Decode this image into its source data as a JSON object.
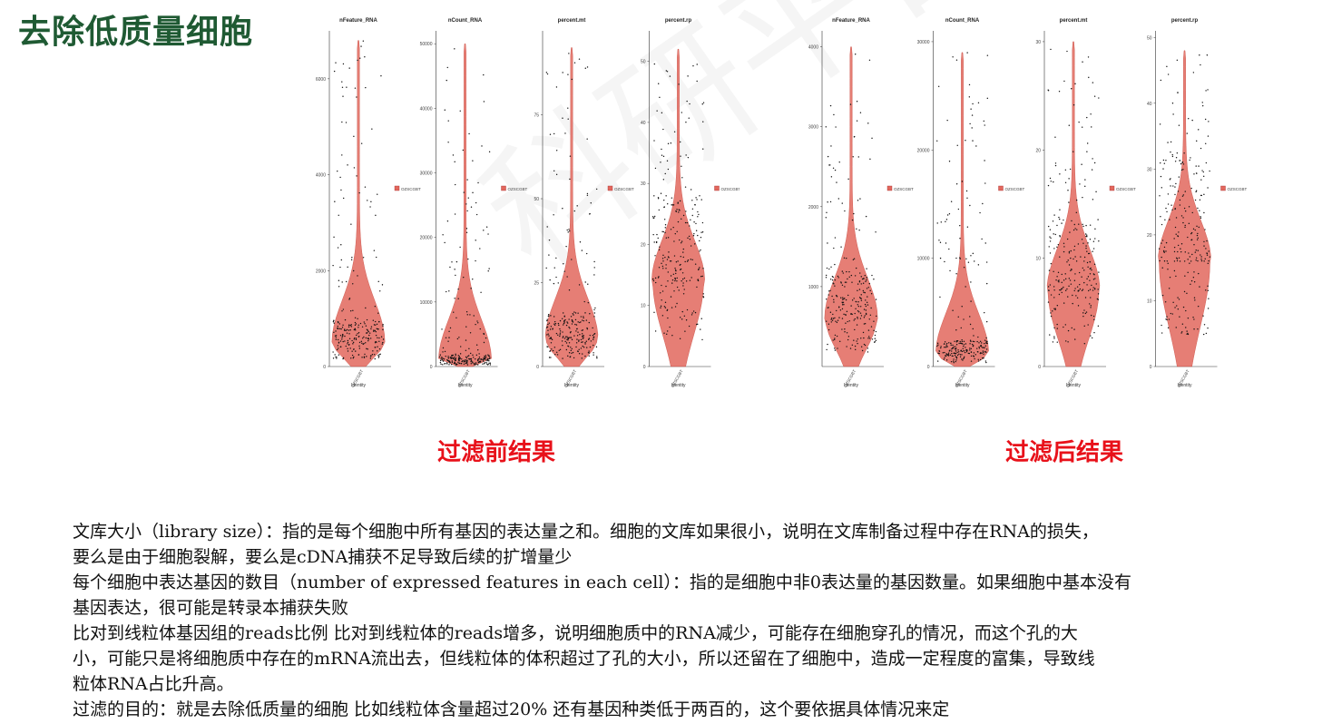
{
  "title": "去除低质量细胞",
  "captions": {
    "before": "过滤前结果",
    "after": "过滤后结果"
  },
  "paragraphs": [
    "文库大小（library size）：指的是每个细胞中所有基因的表达量之和。细胞的文库如果很小，说明在文库制备过程中存在RNA的损失，",
    "要么是由于细胞裂解，要么是cDNA捕获不足导致后续的扩增量少",
    "  每个细胞中表达基因的数目（number of expressed features in each cell）：指的是细胞中非0表达量的基因数量。如果细胞中基本没有",
    "基因表达，很可能是转录本捕获失败",
    "  比对到线粒体基因组的reads比例 比对到线粒体的reads增多，说明细胞质中的RNA减少，可能存在细胞穿孔的情况，而这个孔的大",
    "小，可能只是将细胞质中存在的mRNA流出去，但线粒体的体积超过了孔的大小，所以还留在了细胞中，造成一定程度的富集，导致线",
    "粒体RNA占比升高。",
    "过滤的目的：就是去除低质量的细胞 比如线粒体含量超过20% 还有基因种类低于两百的，这个要依据具体情况来定"
  ],
  "chart_data": [
    {
      "type": "violin",
      "panel": "before",
      "legend_label": "OZSCGBT",
      "xlabel": "Identity",
      "x_tick": "OZSCGBT",
      "subplots": [
        {
          "title": "nFeature_RNA",
          "ylim": [
            0,
            7000
          ],
          "yticks": [
            0,
            2000,
            4000,
            6000
          ],
          "median": 500,
          "max": 6800
        },
        {
          "title": "nCount_RNA",
          "ylim": [
            0,
            52000
          ],
          "yticks": [
            0,
            10000,
            20000,
            30000,
            40000,
            50000
          ],
          "median": 900,
          "max": 50000
        },
        {
          "title": "percent.mt",
          "ylim": [
            0,
            100
          ],
          "yticks": [
            0,
            25,
            50,
            75
          ],
          "median": 8,
          "max": 95
        },
        {
          "title": "percent.rp",
          "ylim": [
            0,
            55
          ],
          "yticks": [
            0,
            10,
            20,
            30,
            40,
            50
          ],
          "median": 14,
          "max": 52
        }
      ]
    },
    {
      "type": "violin",
      "panel": "after",
      "legend_label": "OZSCGBT",
      "xlabel": "Identity",
      "x_tick": "OZSCGBT",
      "subplots": [
        {
          "title": "nFeature_RNA",
          "ylim": [
            0,
            4200
          ],
          "yticks": [
            1000,
            2000,
            3000,
            4000
          ],
          "median": 600,
          "max": 4000
        },
        {
          "title": "nCount_RNA",
          "ylim": [
            0,
            31000
          ],
          "yticks": [
            0,
            10000,
            20000,
            30000
          ],
          "median": 1200,
          "max": 29000
        },
        {
          "title": "percent.mt",
          "ylim": [
            0,
            31
          ],
          "yticks": [
            0,
            10,
            20,
            30
          ],
          "median": 7,
          "max": 30
        },
        {
          "title": "percent.rp",
          "ylim": [
            0,
            51
          ],
          "yticks": [
            0,
            10,
            20,
            30,
            40,
            50
          ],
          "median": 16,
          "max": 48
        }
      ]
    }
  ]
}
